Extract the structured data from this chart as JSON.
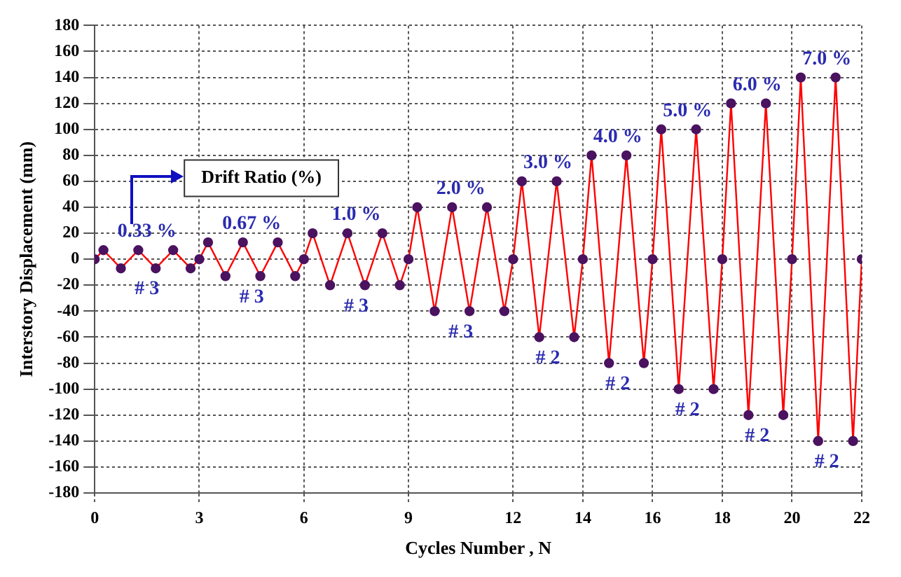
{
  "chart_data": {
    "type": "line",
    "xlabel": "Cycles Number , N",
    "ylabel": "Interstory Displacement (mm)",
    "x": [
      0,
      0.25,
      0.75,
      1.25,
      1.75,
      2.25,
      2.75,
      3,
      3.25,
      3.75,
      4.25,
      4.75,
      5.25,
      5.75,
      6,
      6.25,
      6.75,
      7.25,
      7.75,
      8.25,
      8.75,
      9,
      9.25,
      9.75,
      10.25,
      10.75,
      11.25,
      11.75,
      12,
      12.25,
      12.75,
      13.25,
      13.75,
      14,
      14.25,
      14.75,
      15.25,
      15.75,
      16,
      16.25,
      16.75,
      17.25,
      17.75,
      18,
      18.25,
      18.75,
      19.25,
      19.75,
      20,
      20.25,
      20.75,
      21.25,
      21.75,
      22
    ],
    "series": [
      {
        "color": "#ff0000",
        "values": [
          0,
          7,
          -7,
          7,
          -7,
          7,
          -7,
          0,
          13,
          -13,
          13,
          -13,
          13,
          -13,
          0,
          20,
          -20,
          20,
          -20,
          20,
          -20,
          0,
          40,
          -40,
          40,
          -40,
          40,
          -40,
          0,
          60,
          -60,
          60,
          -60,
          0,
          80,
          -80,
          80,
          -80,
          0,
          100,
          -100,
          100,
          -100,
          0,
          120,
          -120,
          120,
          -120,
          0,
          140,
          -140,
          140,
          -140,
          0
        ]
      }
    ],
    "marker": "circle",
    "line_style": "solid",
    "grid": true,
    "legend": false,
    "xlim": [
      0,
      22
    ],
    "xticks": [
      0,
      3,
      6,
      9,
      12,
      14,
      16,
      18,
      20,
      22
    ],
    "ylim": [
      -180,
      180
    ],
    "yticks": [
      -180,
      -160,
      -140,
      -120,
      -100,
      -80,
      -60,
      -40,
      -20,
      0,
      20,
      40,
      60,
      80,
      100,
      120,
      140,
      160,
      180
    ],
    "annotations": [
      "Drift Ratio (%)",
      {
        "text": "0.33 %",
        "x": 1.5,
        "y": 7
      },
      {
        "text": "# 3",
        "x": 1.5,
        "y": -7
      },
      {
        "text": "0.67 %",
        "x": 4.5,
        "y": 13
      },
      {
        "text": "# 3",
        "x": 4.5,
        "y": -13
      },
      {
        "text": "1.0 %",
        "x": 7.5,
        "y": 20
      },
      {
        "text": "# 3",
        "x": 7.5,
        "y": -20
      },
      {
        "text": "2.0 %",
        "x": 10.5,
        "y": 40
      },
      {
        "text": "# 3",
        "x": 10.5,
        "y": -40
      },
      {
        "text": "3.0 %",
        "x": 13,
        "y": 60
      },
      {
        "text": "# 2",
        "x": 13,
        "y": -60
      },
      {
        "text": "4.0 %",
        "x": 15,
        "y": 80
      },
      {
        "text": "# 2",
        "x": 15,
        "y": -80
      },
      {
        "text": "5.0 %",
        "x": 17,
        "y": 100
      },
      {
        "text": "# 2",
        "x": 17,
        "y": -100
      },
      {
        "text": "6.0 %",
        "x": 19,
        "y": 120
      },
      {
        "text": "# 2",
        "x": 19,
        "y": -120
      },
      {
        "text": "7.0 %",
        "x": 21,
        "y": 140
      },
      {
        "text": "# 2",
        "x": 21,
        "y": -140
      }
    ]
  }
}
